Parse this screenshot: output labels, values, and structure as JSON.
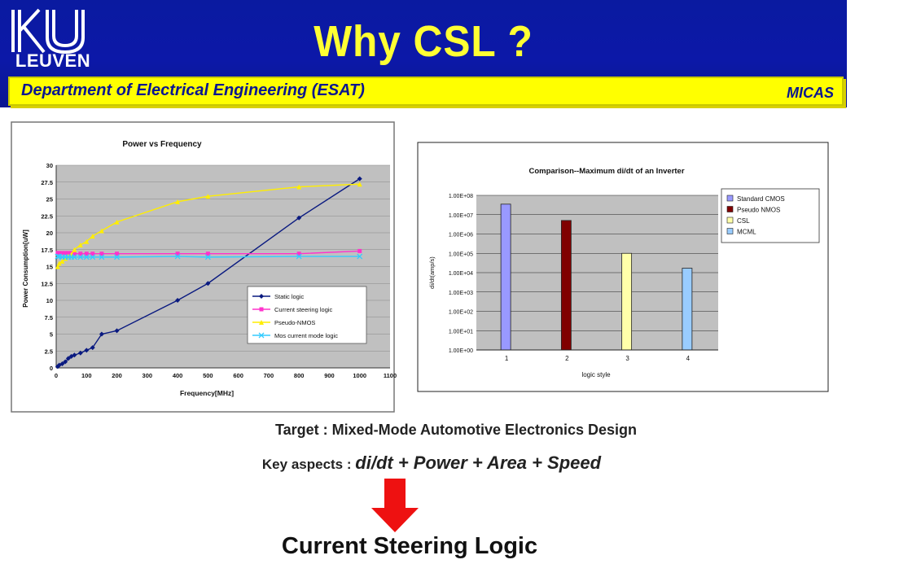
{
  "header": {
    "logo_text": "LEUVEN",
    "title": "Why  CSL ?",
    "department": "Department of Electrical Engineering (ESAT)",
    "group": "MICAS"
  },
  "colors": {
    "header_blue": "#0c18a8",
    "title_yellow": "#ffff33",
    "bar_yellow": "#ffff00",
    "arrow_red": "#ee1111"
  },
  "chart_data": [
    {
      "type": "line",
      "title": "Power vs Frequency",
      "xlabel": "Frequency[MHz]",
      "ylabel": "Power Consumption[uW]",
      "xlim": [
        0,
        1100
      ],
      "ylim": [
        0,
        30
      ],
      "xticks": [
        0,
        100,
        200,
        300,
        400,
        500,
        600,
        700,
        800,
        900,
        1000,
        1100
      ],
      "yticks": [
        0,
        2.5,
        5,
        7.5,
        10,
        12.5,
        15,
        17.5,
        20,
        22.5,
        25,
        27.5,
        30
      ],
      "grid": true,
      "legend_position": "bottom-right",
      "series": [
        {
          "name": "Static logic",
          "color": "#0a1a80",
          "marker": "diamond",
          "x": [
            5,
            10,
            20,
            30,
            40,
            50,
            60,
            80,
            100,
            120,
            150,
            200,
            400,
            500,
            800,
            1000
          ],
          "y": [
            0.2,
            0.4,
            0.6,
            0.9,
            1.4,
            1.7,
            1.9,
            2.2,
            2.6,
            3.0,
            5.0,
            5.5,
            10.0,
            12.5,
            22.2,
            28.0
          ]
        },
        {
          "name": "Current steering logic",
          "color": "#ff33cc",
          "marker": "square",
          "x": [
            5,
            10,
            20,
            30,
            40,
            50,
            60,
            80,
            100,
            120,
            150,
            200,
            400,
            500,
            800,
            1000
          ],
          "y": [
            17.0,
            17.0,
            17.0,
            17.0,
            17.0,
            17.0,
            16.9,
            16.9,
            16.9,
            16.9,
            16.9,
            16.9,
            16.9,
            16.9,
            16.9,
            17.3
          ]
        },
        {
          "name": "Pseudo-NMOS",
          "color": "#ffee00",
          "marker": "triangle",
          "x": [
            5,
            10,
            20,
            30,
            40,
            50,
            60,
            80,
            100,
            120,
            150,
            200,
            400,
            500,
            800,
            1000
          ],
          "y": [
            15.0,
            15.5,
            15.8,
            16.2,
            16.5,
            16.8,
            17.5,
            18.2,
            18.7,
            19.5,
            20.3,
            21.6,
            24.6,
            25.4,
            26.8,
            27.2
          ]
        },
        {
          "name": "Mos current mode logic",
          "color": "#33ccff",
          "marker": "x",
          "x": [
            5,
            10,
            20,
            30,
            40,
            50,
            60,
            80,
            100,
            120,
            150,
            200,
            400,
            500,
            800,
            1000
          ],
          "y": [
            16.5,
            16.5,
            16.4,
            16.4,
            16.4,
            16.4,
            16.4,
            16.4,
            16.4,
            16.4,
            16.4,
            16.4,
            16.5,
            16.4,
            16.5,
            16.5
          ]
        }
      ]
    },
    {
      "type": "bar",
      "title": "Comparison--Maximum di/dt of an Inverter",
      "xlabel": "logic style",
      "ylabel": "di/dt(amp/s)",
      "yscale": "log",
      "ylim": [
        1,
        100000000
      ],
      "yticks": [
        "1.00E+00",
        "1.00E+01",
        "1.00E+02",
        "1.00E+03",
        "1.00E+04",
        "1.00E+05",
        "1.00E+06",
        "1.00E+07",
        "1.00E+08"
      ],
      "categories": [
        "1",
        "2",
        "3",
        "4"
      ],
      "legend_position": "right",
      "series": [
        {
          "name": "Standard CMOS",
          "color": "#9999ff",
          "category": "1",
          "value": 35000000
        },
        {
          "name": "Pseudo NMOS",
          "color": "#800000",
          "category": "2",
          "value": 5000000
        },
        {
          "name": "CSL",
          "color": "#ffffaa",
          "category": "3",
          "value": 100000
        },
        {
          "name": "MCML",
          "color": "#99ccff",
          "category": "4",
          "value": 17000
        }
      ]
    }
  ],
  "text": {
    "target_label": "Target",
    "target_text": ": Mixed-Mode Automotive Electronics Design",
    "key_label": "Key aspects",
    "key_colon": ":",
    "key_text": "di/dt + Power + Area + Speed",
    "conclusion": "Current Steering Logic"
  }
}
